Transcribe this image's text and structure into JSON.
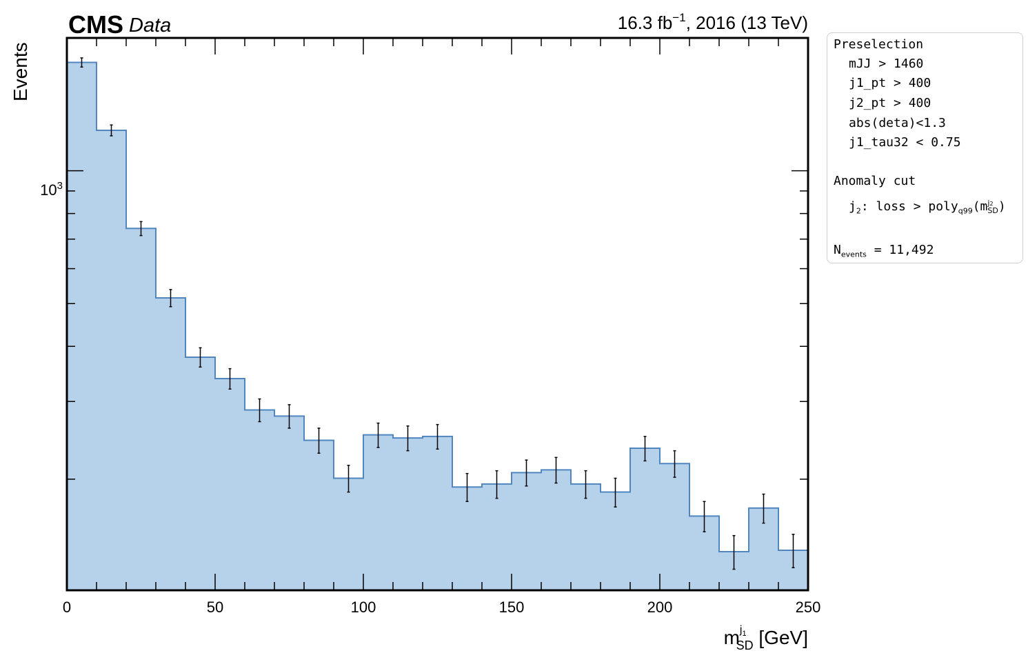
{
  "header": {
    "experiment": "CMS",
    "extra": "Data",
    "lumi_text": "16.3 fb",
    "lumi_exp": "−1",
    "lumi_suffix": ", 2016 (13 TeV)"
  },
  "legend": {
    "title": "Preselection",
    "cuts": [
      "mJJ > 1460",
      "j1_pt > 400",
      "j2_pt > 400",
      "abs(deta)<1.3",
      "j1_tau32 < 0.75"
    ],
    "anomaly_title": "Anomaly cut",
    "anomaly_jet": "j",
    "anomaly_jet_sub": "2",
    "anomaly_text": ": loss > poly",
    "anomaly_poly_sub": "q99",
    "anomaly_m": "(m",
    "anomaly_m_sup": "j",
    "anomaly_m_sup_sub": "2",
    "anomaly_m_sub": "SD",
    "anomaly_close": ")",
    "nevents_label": "N",
    "nevents_sub": "events",
    "nevents_value": " = 11,492"
  },
  "chart_data": {
    "type": "bar",
    "histogram": true,
    "bin_edges": [
      0,
      10,
      20,
      30,
      40,
      50,
      60,
      70,
      80,
      90,
      100,
      110,
      120,
      130,
      140,
      150,
      160,
      170,
      180,
      190,
      200,
      210,
      220,
      230,
      240,
      250
    ],
    "values": [
      1760,
      1235,
      740,
      515,
      378,
      338,
      287,
      278,
      245,
      201,
      252,
      248,
      250,
      192,
      195,
      207,
      210,
      195,
      187,
      235,
      217,
      165,
      137,
      172,
      138
    ],
    "errors": [
      42,
      35,
      27,
      23,
      19,
      18,
      17,
      17,
      16,
      14,
      16,
      16,
      16,
      14,
      14,
      14,
      14,
      14,
      14,
      15,
      15,
      13,
      12,
      13,
      12
    ],
    "xlabel": "m",
    "xlabel_sup": "j",
    "xlabel_sup_sub": "1",
    "xlabel_sub": "SD",
    "xlabel_unit": " [GeV]",
    "ylabel": "Events",
    "xlim": [
      0,
      250
    ],
    "ylim": [
      112,
      2000
    ],
    "yscale": "log",
    "xticks": [
      0,
      50,
      100,
      150,
      200,
      250
    ],
    "ytick_label_base": "10",
    "ytick_label_exp": "3",
    "ytick_value": 1000,
    "fill_color": "#b6d1ea",
    "edge_color": "#4f86bf",
    "error_color": "#000000",
    "grid": false
  }
}
